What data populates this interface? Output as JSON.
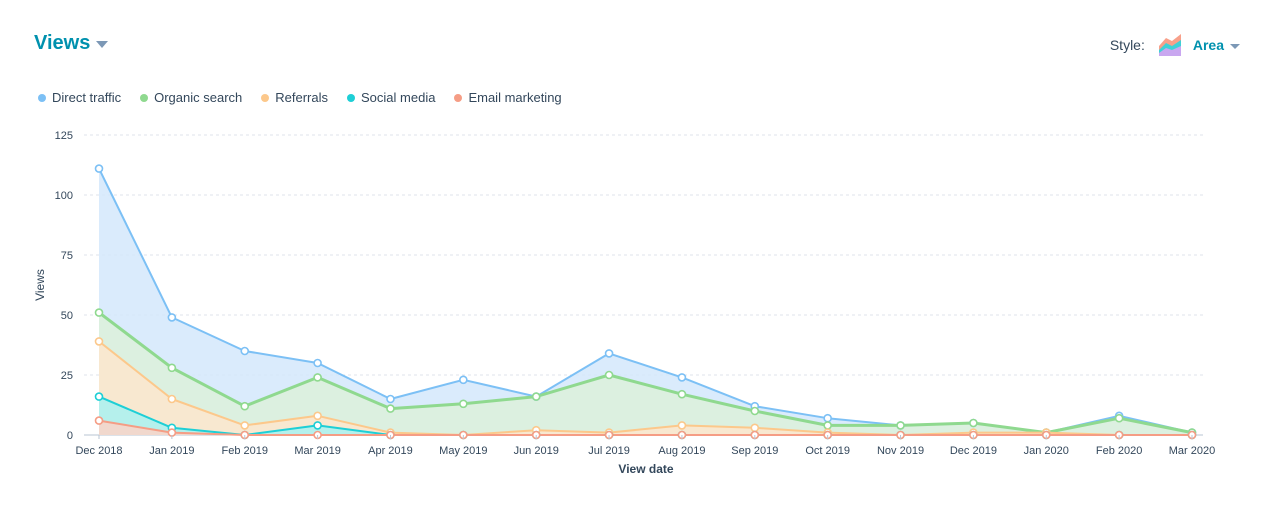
{
  "header": {
    "title": "Views"
  },
  "style_control": {
    "label": "Style:",
    "value": "Area",
    "icon": "area-chart-icon"
  },
  "chart_data": {
    "type": "area",
    "stacked": false,
    "title": "",
    "xlabel": "View date",
    "ylabel": "Views",
    "ylim": [
      0,
      125
    ],
    "yticks": [
      0,
      25,
      50,
      75,
      100,
      125
    ],
    "grid": true,
    "legend_position": "top-left",
    "x": [
      "Dec 2018",
      "Jan 2019",
      "Feb 2019",
      "Mar 2019",
      "Apr 2019",
      "May 2019",
      "Jun 2019",
      "Jul 2019",
      "Aug 2019",
      "Sep 2019",
      "Oct 2019",
      "Nov 2019",
      "Dec 2019",
      "Jan 2020",
      "Feb 2020",
      "Mar 2020"
    ],
    "series": [
      {
        "name": "Direct traffic",
        "color": "#7cc0f5",
        "fill": "#d4e8fb",
        "values": [
          111,
          49,
          35,
          30,
          15,
          23,
          16,
          34,
          24,
          12,
          7,
          4,
          5,
          1,
          8,
          1
        ]
      },
      {
        "name": "Organic search",
        "color": "#8fd98f",
        "fill": "#dcf1da",
        "values": [
          51,
          28,
          12,
          24,
          11,
          13,
          16,
          25,
          17,
          10,
          4,
          4,
          5,
          1,
          7,
          1
        ]
      },
      {
        "name": "Referrals",
        "color": "#fcc88b",
        "fill": "#fde6cc",
        "values": [
          39,
          15,
          4,
          8,
          1,
          0,
          2,
          1,
          4,
          3,
          1,
          0,
          1,
          1,
          0,
          0
        ]
      },
      {
        "name": "Social media",
        "color": "#1ecfd6",
        "fill": "#a9f1f1",
        "values": [
          16,
          3,
          0,
          4,
          0,
          0,
          0,
          0,
          0,
          0,
          0,
          0,
          0,
          0,
          0,
          0
        ]
      },
      {
        "name": "Email marketing",
        "color": "#f59d85",
        "fill": "#fbd3c8",
        "values": [
          6,
          1,
          0,
          0,
          0,
          0,
          0,
          0,
          0,
          0,
          0,
          0,
          0,
          0,
          0,
          0
        ]
      }
    ]
  }
}
